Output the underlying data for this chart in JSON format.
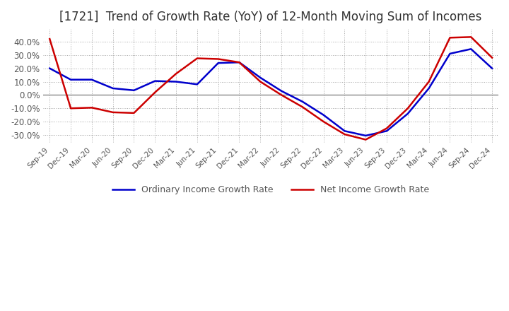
{
  "title": "[1721]  Trend of Growth Rate (YoY) of 12-Month Moving Sum of Incomes",
  "title_fontsize": 12,
  "ylim": [
    -36,
    50
  ],
  "yticks": [
    -30,
    -20,
    -10,
    0,
    10,
    20,
    30,
    40
  ],
  "ytick_labels": [
    "-30.0%",
    "-20.0%",
    "-10.0%",
    "0.0%",
    "10.0%",
    "20.0%",
    "30.0%",
    "40.0%"
  ],
  "x_labels": [
    "Sep-19",
    "Dec-19",
    "Mar-20",
    "Jun-20",
    "Sep-20",
    "Dec-20",
    "Mar-21",
    "Jun-21",
    "Sep-21",
    "Dec-21",
    "Mar-22",
    "Jun-22",
    "Sep-22",
    "Dec-22",
    "Mar-23",
    "Jun-23",
    "Sep-23",
    "Dec-23",
    "Mar-24",
    "Jun-24",
    "Sep-24",
    "Dec-24"
  ],
  "ordinary_income": [
    20.0,
    11.5,
    11.5,
    5.0,
    3.5,
    10.5,
    10.0,
    8.0,
    24.0,
    24.5,
    13.0,
    3.0,
    -5.0,
    -15.0,
    -27.0,
    -30.5,
    -27.0,
    -14.0,
    5.0,
    31.0,
    34.5,
    20.0
  ],
  "net_income": [
    42.0,
    -10.0,
    -9.5,
    -13.0,
    -13.5,
    2.0,
    16.0,
    27.5,
    27.0,
    24.5,
    10.0,
    0.0,
    -9.0,
    -20.0,
    -29.5,
    -33.5,
    -25.0,
    -10.0,
    10.0,
    43.0,
    43.5,
    28.0
  ],
  "ordinary_color": "#0000cc",
  "net_color": "#cc0000",
  "line_width": 1.8,
  "grid_color": "#aaaaaa",
  "background_color": "#ffffff",
  "zero_line_color": "#888888",
  "legend_labels": [
    "Ordinary Income Growth Rate",
    "Net Income Growth Rate"
  ]
}
